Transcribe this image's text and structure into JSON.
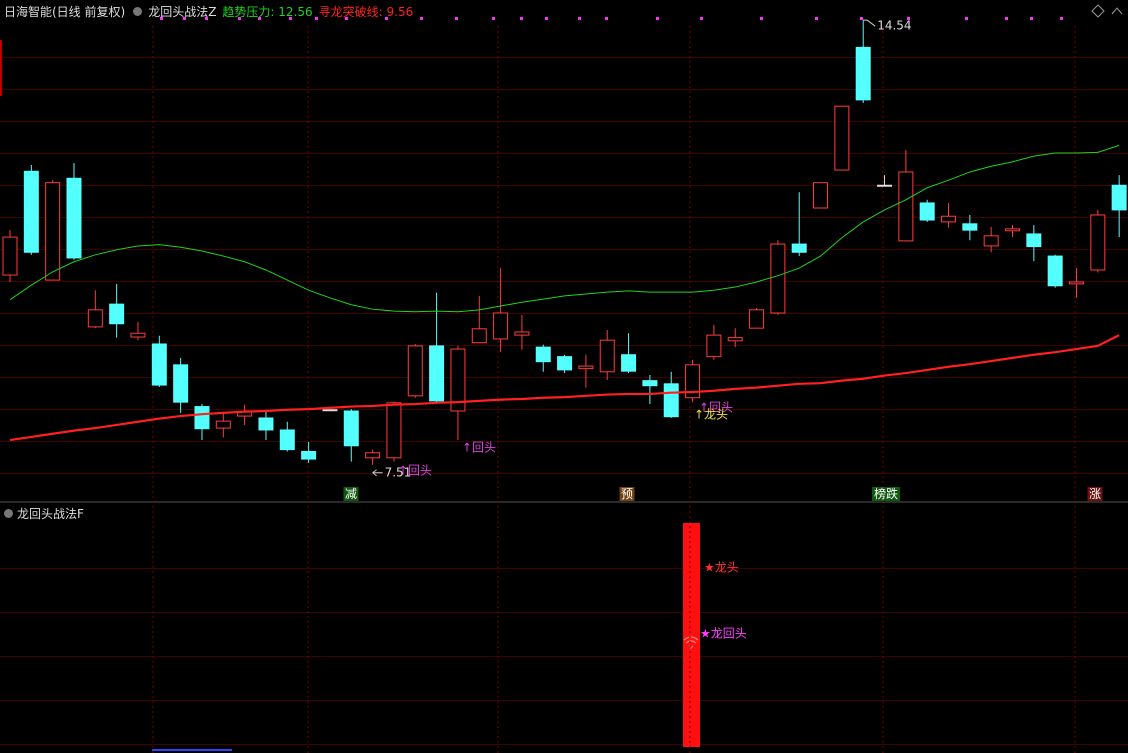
{
  "chart_data": {
    "type": "candlestick",
    "title": "日海智能(日线 前复权)",
    "indicator": "龙回头战法Z",
    "up_color": "#ff3c3c",
    "down_color": "#54ffff",
    "flat_color": "#dddddd",
    "ylim": [
      7.19,
      14.78
    ],
    "open": [
      10.51,
      12.15,
      10.43,
      12.04,
      9.69,
      10.05,
      9.53,
      9.42,
      9.09,
      8.43,
      8.09,
      8.28,
      8.25,
      8.06,
      7.72,
      8.38,
      8.36,
      7.62,
      7.62,
      8.6,
      9.39,
      8.36,
      9.44,
      9.5,
      9.56,
      9.37,
      9.22,
      9.03,
      8.98,
      9.25,
      8.84,
      8.79,
      8.57,
      9.22,
      9.47,
      9.67,
      9.91,
      11.0,
      11.57,
      12.17,
      14.11,
      11.93,
      11.05,
      11.65,
      11.35,
      11.32,
      10.97,
      11.21,
      11.16,
      10.81,
      10.37,
      10.59,
      11.93
    ],
    "high": [
      11.22,
      12.25,
      12.01,
      12.28,
      10.27,
      10.37,
      9.77,
      9.55,
      9.2,
      8.47,
      8.35,
      8.46,
      8.38,
      8.19,
      7.87,
      8.38,
      8.39,
      7.75,
      8.51,
      9.42,
      10.23,
      9.39,
      10.18,
      10.62,
      9.88,
      9.41,
      9.25,
      9.25,
      9.64,
      9.59,
      8.93,
      8.98,
      9.17,
      9.72,
      9.67,
      9.99,
      11.06,
      11.82,
      11.97,
      13.18,
      14.54,
      12.09,
      12.49,
      11.7,
      11.65,
      11.46,
      11.27,
      11.3,
      11.3,
      10.83,
      10.62,
      11.54,
      12.09
    ],
    "low": [
      10.4,
      10.83,
      10.43,
      10.75,
      9.67,
      9.52,
      9.48,
      8.74,
      8.33,
      7.9,
      7.94,
      8.14,
      7.9,
      7.72,
      7.54,
      8.38,
      7.56,
      7.51,
      7.56,
      8.57,
      8.5,
      7.9,
      9.44,
      9.29,
      9.33,
      8.98,
      8.96,
      8.73,
      8.85,
      8.96,
      8.47,
      8.25,
      8.5,
      9.17,
      9.37,
      9.67,
      9.88,
      10.81,
      11.57,
      12.17,
      13.23,
      11.93,
      11.05,
      11.35,
      11.26,
      11.06,
      10.87,
      11.11,
      10.73,
      10.31,
      10.15,
      10.55,
      11.11
    ],
    "close": [
      11.11,
      10.87,
      11.97,
      10.78,
      9.96,
      9.74,
      9.59,
      8.77,
      8.5,
      8.08,
      8.2,
      8.35,
      8.06,
      7.75,
      7.6,
      8.38,
      7.81,
      7.7,
      8.49,
      9.39,
      8.52,
      9.34,
      9.66,
      9.91,
      9.61,
      9.14,
      9.01,
      9.07,
      9.48,
      8.99,
      8.76,
      8.27,
      9.09,
      9.56,
      9.52,
      9.96,
      11.0,
      10.87,
      11.97,
      13.18,
      13.28,
      11.93,
      12.14,
      11.38,
      11.44,
      11.22,
      11.13,
      11.24,
      10.96,
      10.34,
      10.4,
      11.46,
      11.54
    ],
    "series": [
      {
        "name": "趋势压力:",
        "color": "#1ed41e",
        "width": 1,
        "values": [
          10.12,
          10.35,
          10.56,
          10.72,
          10.83,
          10.91,
          10.97,
          10.99,
          10.95,
          10.89,
          10.81,
          10.72,
          10.59,
          10.43,
          10.27,
          10.15,
          10.04,
          9.97,
          9.94,
          9.93,
          9.94,
          9.93,
          9.96,
          10.02,
          10.08,
          10.13,
          10.18,
          10.21,
          10.24,
          10.26,
          10.24,
          10.24,
          10.24,
          10.27,
          10.32,
          10.4,
          10.5,
          10.62,
          10.81,
          11.1,
          11.35,
          11.54,
          11.7,
          11.89,
          12.01,
          12.14,
          12.23,
          12.3,
          12.39,
          12.44,
          12.44,
          12.45,
          12.56
        ]
      },
      {
        "name": "寻龙突破线:",
        "color": "#ff2020",
        "width": 2.2,
        "values": [
          7.9,
          7.95,
          8.0,
          8.05,
          8.09,
          8.14,
          8.19,
          8.24,
          8.28,
          8.31,
          8.33,
          8.35,
          8.36,
          8.38,
          8.39,
          8.41,
          8.43,
          8.44,
          8.46,
          8.47,
          8.49,
          8.5,
          8.52,
          8.54,
          8.55,
          8.57,
          8.58,
          8.6,
          8.62,
          8.63,
          8.63,
          8.65,
          8.66,
          8.68,
          8.71,
          8.73,
          8.76,
          8.79,
          8.8,
          8.84,
          8.87,
          8.92,
          8.96,
          9.01,
          9.06,
          9.1,
          9.15,
          9.2,
          9.25,
          9.29,
          9.34,
          9.39,
          9.56
        ]
      }
    ],
    "signals": [
      {
        "text": "↑回头",
        "color": "#e040e0"
      },
      {
        "text": "↑回头",
        "color": "#e040e0"
      },
      {
        "text": "↑回头",
        "color": "#e040e0"
      },
      {
        "text": "↑龙头",
        "color": "#f0e040"
      }
    ],
    "markers": [
      {
        "text": "减",
        "color": "#1e9e1e"
      },
      {
        "text": "预",
        "color": "#d07820"
      },
      {
        "text": "榜跌",
        "color": "#1e9e1e"
      },
      {
        "text": "涨",
        "color": "#c02020"
      }
    ],
    "lower_panel": {
      "title": "龙回头战法F",
      "labels": [
        {
          "text": "★龙头",
          "color": "#ff3030"
        },
        {
          "text": "★龙回头",
          "color": "#ff40ff"
        }
      ]
    }
  }
}
